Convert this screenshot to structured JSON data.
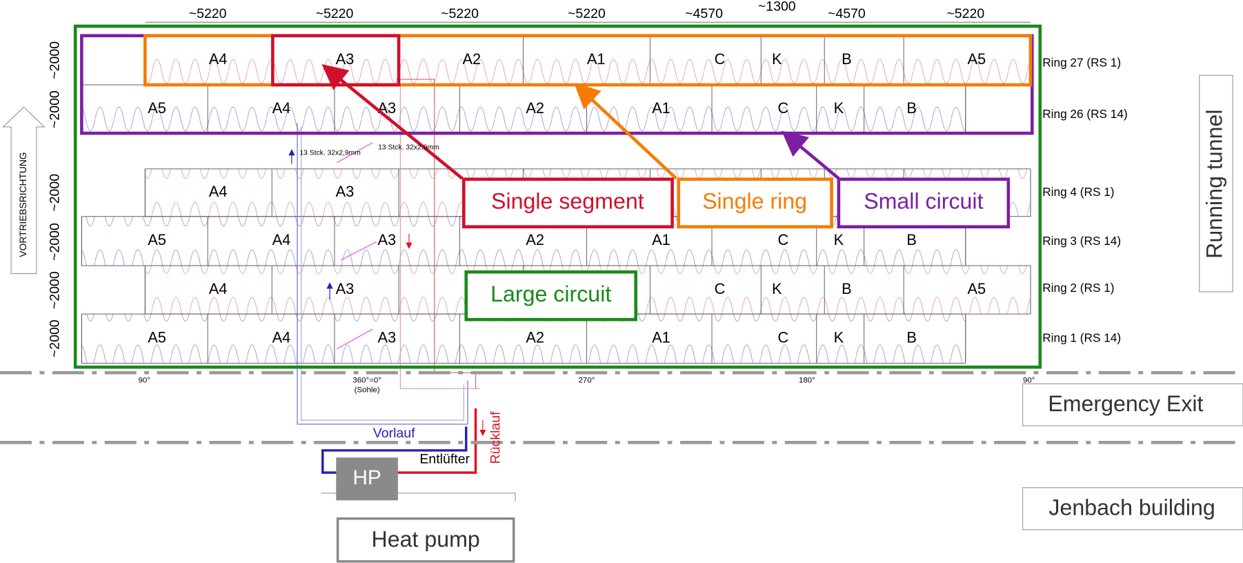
{
  "dimensions": [
    "~5220",
    "~5220",
    "~5220",
    "~5220",
    "~4570",
    "~1300",
    "~4570",
    "~5220"
  ],
  "side_dimensions": [
    "~2000",
    "~2000",
    "~2000",
    "~2000",
    "~2000",
    "~2000"
  ],
  "direction": "VORTRIEBSRICHTUNG",
  "rings": [
    {
      "label": "Ring 27  (RS 1)",
      "segments": [
        "A4",
        "A3",
        "A2",
        "A1",
        "C",
        "K",
        "B",
        "A5"
      ]
    },
    {
      "label": "Ring 26  (RS 14)",
      "segments": [
        "A5",
        "A4",
        "A3",
        "A2",
        "A1",
        "C",
        "K",
        "B"
      ]
    },
    {
      "label": "Ring 4  (RS 1)",
      "segments": [
        "A4",
        "A3"
      ]
    },
    {
      "label": "Ring 3  (RS 14)",
      "segments": [
        "A5",
        "A4",
        "A3",
        "A2",
        "A1",
        "C",
        "K",
        "B"
      ]
    },
    {
      "label": "Ring 2  (RS 1)",
      "segments": [
        "A4",
        "A3",
        "C",
        "K",
        "B",
        "A5"
      ]
    },
    {
      "label": "Ring 1  (RS 14)",
      "segments": [
        "A5",
        "A4",
        "A3",
        "A2",
        "A1",
        "C",
        "K",
        "B"
      ]
    }
  ],
  "angles": [
    "90°",
    "360°=0°",
    "(Sohle)",
    "270°",
    "180°",
    "90°"
  ],
  "pipe_notes": [
    "13 Stck. 32x2,9mm",
    "13 Stck. 32x2,9mm"
  ],
  "piping": {
    "supply": "Vorlauf",
    "return": "Rücklauf",
    "vent": "Entlüfter",
    "unit": "HP",
    "unit_caption": "Heat pump"
  },
  "callouts": {
    "segment": "Single segment",
    "ring": "Single ring",
    "small": "Small circuit",
    "large": "Large circuit"
  },
  "zones": {
    "tunnel": "Running tunnel",
    "exit": "Emergency Exit",
    "building": "Jenbach building"
  }
}
